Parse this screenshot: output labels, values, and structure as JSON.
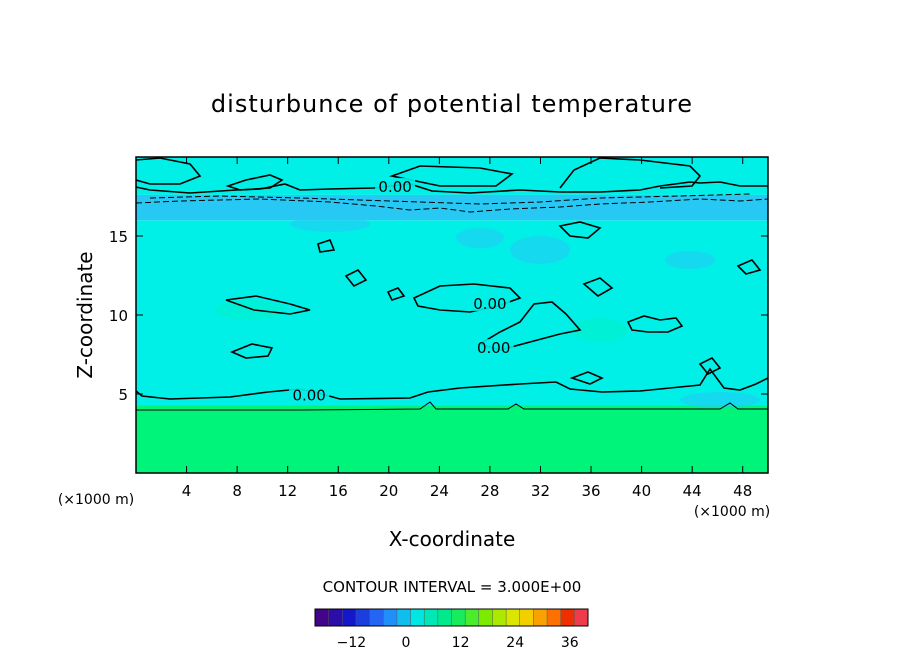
{
  "chart_data": {
    "type": "contour",
    "title": "disturbunce of potential temperature",
    "xlabel": "X-coordinate",
    "ylabel": "Z-coordinate",
    "x_unit": "(×1000 m)",
    "z_unit": "(×1000 m)",
    "xlim": [
      0,
      50
    ],
    "ylim": [
      0,
      20
    ],
    "x_ticks": [
      4,
      8,
      12,
      16,
      20,
      24,
      28,
      32,
      36,
      40,
      44,
      48
    ],
    "y_ticks": [
      5,
      10,
      15
    ],
    "contour_interval_text": "CONTOUR INTERVAL = 3.000E+00",
    "contour_labels": [
      {
        "text": "0.00",
        "x": 13.7,
        "z": 4.9
      },
      {
        "text": "0.00",
        "x": 28.3,
        "z": 7.9
      },
      {
        "text": "0.00",
        "x": 28.0,
        "z": 10.7
      },
      {
        "text": "0.00",
        "x": 20.5,
        "z": 18.1
      }
    ],
    "field_bands": [
      {
        "z_from": 0.0,
        "z_to": 4.3,
        "value": 6,
        "color": "#00f47a"
      },
      {
        "z_from": 4.3,
        "z_to": 16.0,
        "value": 0,
        "color": "#00f0e8"
      },
      {
        "z_from": 16.0,
        "z_to": 17.6,
        "value": -3,
        "color": "#27c8f4"
      },
      {
        "z_from": 17.6,
        "z_to": 20.0,
        "value": 0,
        "color": "#00f0e8"
      }
    ],
    "colorbar": {
      "min": -20,
      "max": 40,
      "step": 3,
      "tick_labels": [
        "-12",
        "0",
        "12",
        "24",
        "36"
      ],
      "tick_values": [
        -12,
        0,
        12,
        24,
        36
      ]
    }
  }
}
